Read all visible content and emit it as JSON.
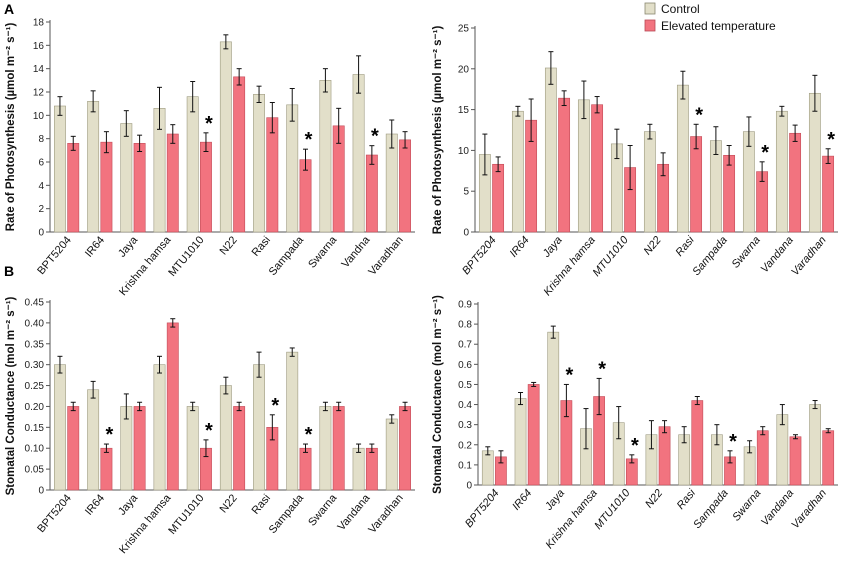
{
  "panel_labels": {
    "a": "A",
    "b": "B"
  },
  "legend": {
    "control": "Control",
    "elevated": "Elevated temperature"
  },
  "colors": {
    "control": "#e2dfc9",
    "elevated": "#f2737f",
    "axis": "#555555"
  },
  "chart_data": [
    {
      "type": "bar",
      "panel": "A-left",
      "ylabel": "Rate of Photosynthesis (µmol m⁻² s⁻¹)",
      "ylim": [
        0,
        18
      ],
      "yticks": [
        "0",
        "2",
        "4",
        "6",
        "8",
        "10",
        "12",
        "14",
        "16",
        "18"
      ],
      "categories": [
        "BPT5204",
        "IR64",
        "Jaya",
        "Krishna hamsa",
        "MTU1010",
        "N22",
        "Rasi",
        "Sampada",
        "Swarna",
        "Vandna",
        "Varadhan"
      ],
      "italic_categories": false,
      "series": [
        {
          "name": "Control",
          "values": [
            10.8,
            11.2,
            9.3,
            10.6,
            11.6,
            16.3,
            11.8,
            10.9,
            13.0,
            13.5,
            8.4
          ],
          "errors": [
            0.8,
            0.9,
            1.1,
            1.8,
            1.3,
            0.6,
            0.7,
            1.4,
            1.0,
            1.6,
            1.2
          ]
        },
        {
          "name": "Elevated temperature",
          "values": [
            7.6,
            7.7,
            7.6,
            8.4,
            7.7,
            13.3,
            9.8,
            6.2,
            9.1,
            6.6,
            7.9
          ],
          "errors": [
            0.6,
            0.9,
            0.7,
            0.8,
            0.8,
            0.7,
            1.3,
            0.9,
            1.5,
            0.8,
            0.7
          ]
        }
      ],
      "significant": [
        "MTU1010",
        "Sampada",
        "Vandna"
      ]
    },
    {
      "type": "bar",
      "panel": "A-right",
      "ylabel": "Rate of Photosynthesis (µmol m⁻² s⁻¹)",
      "ylim": [
        0,
        25
      ],
      "yticks": [
        "0",
        "5",
        "10",
        "15",
        "20",
        "25"
      ],
      "categories": [
        "BPT5204",
        "IR64",
        "Jaya",
        "Krishna hamsa",
        "MTU1010",
        "N22",
        "Rasi",
        "Sampada",
        "Swarna",
        "Vandana",
        "Varadhan"
      ],
      "italic_categories": true,
      "series": [
        {
          "name": "Control",
          "values": [
            9.5,
            14.8,
            20.1,
            16.2,
            10.8,
            12.3,
            18.0,
            11.2,
            12.3,
            14.8,
            17.0
          ],
          "errors": [
            2.5,
            0.6,
            2.0,
            2.3,
            1.8,
            0.9,
            1.7,
            1.7,
            1.8,
            0.6,
            2.2
          ]
        },
        {
          "name": "Elevated temperature",
          "values": [
            8.3,
            13.7,
            16.4,
            15.6,
            7.9,
            8.3,
            11.7,
            9.4,
            7.4,
            12.1,
            9.3
          ],
          "errors": [
            0.9,
            2.6,
            0.9,
            1.0,
            2.7,
            1.4,
            1.5,
            1.2,
            1.2,
            1.0,
            0.9
          ]
        }
      ],
      "significant": [
        "Rasi",
        "Swarna",
        "Varadhan"
      ]
    },
    {
      "type": "bar",
      "panel": "B-left",
      "ylabel": "Stomatal Conductance (mol m⁻² s⁻¹)",
      "ylim": [
        0,
        0.45
      ],
      "yticks": [
        "0",
        "0.05",
        "0.10",
        "0.15",
        "0.20",
        "0.25",
        "0.30",
        "0.35",
        "0.40",
        "0.45"
      ],
      "categories": [
        "BPT5204",
        "IR64",
        "Jaya",
        "Krishna hamsa",
        "MTU1010",
        "N22",
        "Rasi",
        "Sampada",
        "Swarna",
        "Vandana",
        "Varadhan"
      ],
      "italic_categories": false,
      "series": [
        {
          "name": "Control",
          "values": [
            0.3,
            0.24,
            0.2,
            0.3,
            0.2,
            0.25,
            0.3,
            0.33,
            0.2,
            0.1,
            0.17
          ],
          "errors": [
            0.02,
            0.02,
            0.03,
            0.02,
            0.01,
            0.02,
            0.03,
            0.01,
            0.01,
            0.01,
            0.01
          ]
        },
        {
          "name": "Elevated temperature",
          "values": [
            0.2,
            0.1,
            0.2,
            0.4,
            0.1,
            0.2,
            0.15,
            0.1,
            0.2,
            0.1,
            0.2
          ],
          "errors": [
            0.01,
            0.01,
            0.01,
            0.01,
            0.02,
            0.01,
            0.03,
            0.01,
            0.01,
            0.01,
            0.01
          ]
        }
      ],
      "significant": [
        "IR64",
        "MTU1010",
        "Rasi",
        "Sampada"
      ]
    },
    {
      "type": "bar",
      "panel": "B-right",
      "ylabel": "Stomatal Conductance (mol m⁻² s⁻¹)",
      "ylim": [
        0,
        0.9
      ],
      "yticks": [
        "0",
        "0.1",
        "0.2",
        "0.3",
        "0.4",
        "0.5",
        "0.6",
        "0.7",
        "0.8",
        "0.9"
      ],
      "categories": [
        "BPT5204",
        "IR64",
        "Jaya",
        "Krishna hamsa",
        "MTU1010",
        "N22",
        "Rasi",
        "Sampada",
        "Swarna",
        "Vandana",
        "Varadhan"
      ],
      "italic_categories": true,
      "series": [
        {
          "name": "Control",
          "values": [
            0.17,
            0.43,
            0.76,
            0.28,
            0.31,
            0.25,
            0.25,
            0.25,
            0.19,
            0.35,
            0.4
          ],
          "errors": [
            0.02,
            0.03,
            0.03,
            0.1,
            0.08,
            0.07,
            0.04,
            0.05,
            0.03,
            0.05,
            0.02
          ]
        },
        {
          "name": "Elevated temperature",
          "values": [
            0.14,
            0.5,
            0.42,
            0.44,
            0.13,
            0.29,
            0.42,
            0.14,
            0.27,
            0.24,
            0.27
          ],
          "errors": [
            0.03,
            0.01,
            0.08,
            0.09,
            0.02,
            0.03,
            0.02,
            0.03,
            0.02,
            0.01,
            0.01
          ]
        }
      ],
      "significant": [
        "Jaya",
        "Krishna hamsa",
        "MTU1010",
        "Sampada"
      ]
    }
  ]
}
